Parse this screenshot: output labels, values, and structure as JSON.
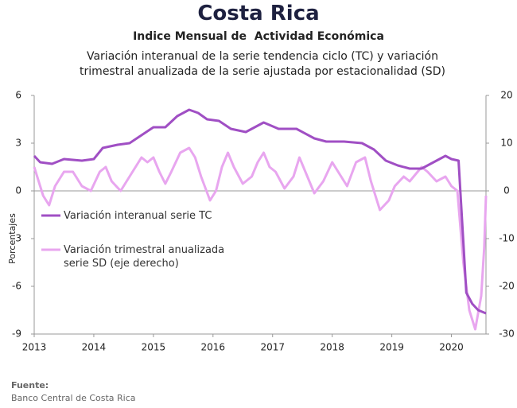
{
  "chart_data": {
    "type": "line",
    "title": "Costa Rica",
    "subtitle": "Indice Mensual de  Actividad Económica",
    "description": "Variación interanual de la serie tendencia ciclo (TC) y variación trimestral anualizada de la serie ajustada por estacionalidad (SD)",
    "y_label": "Porcentajes",
    "source_label": "Fuente:",
    "source": "Banco Central de Costa Rica",
    "xlim": [
      2013,
      2020.58
    ],
    "xticks": [
      2013,
      2014,
      2015,
      2016,
      2017,
      2018,
      2019,
      2020
    ],
    "ylim": [
      -9,
      6
    ],
    "yticks": [
      -9,
      -6,
      -3,
      0,
      3,
      6
    ],
    "y2lim": [
      -30,
      20
    ],
    "y2ticks": [
      -30,
      -20,
      -10,
      0,
      10,
      20
    ],
    "zero_line": true,
    "series": [
      {
        "name": "Variación interanual serie TC",
        "color": "#a04fc4",
        "axis": "y",
        "x": [
          2013,
          2013.1,
          2013.3,
          2013.5,
          2013.8,
          2014,
          2014.15,
          2014.4,
          2014.6,
          2014.8,
          2015,
          2015.2,
          2015.4,
          2015.6,
          2015.75,
          2015.9,
          2016.1,
          2016.3,
          2016.55,
          2016.85,
          2017.1,
          2017.4,
          2017.7,
          2017.9,
          2018.2,
          2018.5,
          2018.7,
          2018.9,
          2019.1,
          2019.3,
          2019.5,
          2019.7,
          2019.9,
          2020,
          2020.12,
          2020.25,
          2020.35,
          2020.45,
          2020.58
        ],
        "values": [
          2.2,
          1.8,
          1.7,
          2.0,
          1.9,
          2.0,
          2.7,
          2.9,
          3.0,
          3.5,
          4.0,
          4.0,
          4.7,
          5.1,
          4.9,
          4.5,
          4.4,
          3.9,
          3.7,
          4.3,
          3.9,
          3.9,
          3.3,
          3.1,
          3.1,
          3.0,
          2.6,
          1.9,
          1.6,
          1.4,
          1.4,
          1.8,
          2.2,
          2.0,
          1.9,
          -6.4,
          -7.1,
          -7.5,
          -7.7
        ]
      },
      {
        "name": "Variación trimestral anualizada serie SD (eje derecho)",
        "color": "#e8a6ef",
        "axis": "y2",
        "x": [
          2013,
          2013.15,
          2013.25,
          2013.35,
          2013.5,
          2013.65,
          2013.8,
          2013.95,
          2014.1,
          2014.2,
          2014.3,
          2014.45,
          2014.6,
          2014.8,
          2014.9,
          2015,
          2015.1,
          2015.2,
          2015.3,
          2015.45,
          2015.6,
          2015.7,
          2015.8,
          2015.95,
          2016.05,
          2016.15,
          2016.25,
          2016.35,
          2016.5,
          2016.65,
          2016.75,
          2016.85,
          2016.95,
          2017.05,
          2017.2,
          2017.35,
          2017.45,
          2017.55,
          2017.7,
          2017.85,
          2018,
          2018.1,
          2018.25,
          2018.4,
          2018.55,
          2018.65,
          2018.8,
          2018.95,
          2019.05,
          2019.2,
          2019.3,
          2019.5,
          2019.6,
          2019.75,
          2019.9,
          2020,
          2020.1,
          2020.2,
          2020.3,
          2020.4,
          2020.5,
          2020.55,
          2020.58
        ],
        "values": [
          5,
          -1,
          -3,
          1,
          4,
          4,
          1,
          0,
          4,
          5,
          2,
          0,
          3,
          7,
          6,
          7,
          4,
          1.5,
          4,
          8,
          9,
          7,
          3,
          -2,
          0,
          5,
          8,
          5,
          1.5,
          3,
          6,
          8,
          5,
          4,
          0.5,
          3,
          7,
          4,
          -0.5,
          2,
          6,
          4,
          1,
          6,
          7,
          2,
          -4,
          -2,
          1,
          3,
          2,
          5,
          4,
          2,
          3,
          1,
          0,
          -15,
          -25,
          -29,
          -22,
          -12,
          -1
        ]
      }
    ]
  }
}
